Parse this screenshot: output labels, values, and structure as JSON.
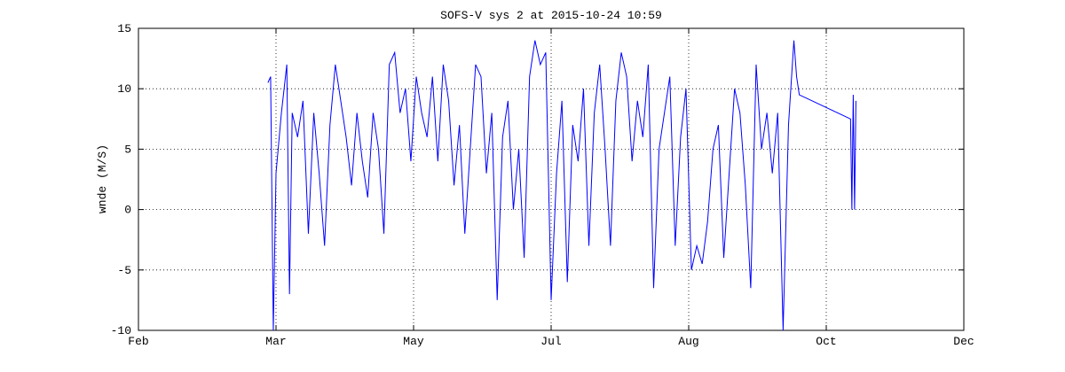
{
  "chart_data": {
    "type": "line",
    "title": "SOFS-V sys 2 at 2015-10-24 10:59",
    "ylabel": "wnde (M/S)",
    "xlim": [
      0,
      306
    ],
    "xticks": [
      {
        "value": 0,
        "label": "Feb"
      },
      {
        "value": 51,
        "label": "Mar"
      },
      {
        "value": 102,
        "label": "May"
      },
      {
        "value": 153,
        "label": "Jul"
      },
      {
        "value": 204,
        "label": "Aug"
      },
      {
        "value": 255,
        "label": "Oct"
      },
      {
        "value": 306,
        "label": "Dec"
      }
    ],
    "ylim": [
      -10,
      15
    ],
    "yticks": [
      -10,
      -5,
      0,
      5,
      10,
      15
    ],
    "grid": true,
    "series": [
      {
        "color": "#0000ff",
        "x": [
          48,
          49,
          50,
          51,
          53,
          55,
          56,
          57,
          59,
          61,
          63,
          65,
          67,
          69,
          71,
          73,
          75,
          77,
          79,
          81,
          83,
          85,
          87,
          89,
          91,
          93,
          95,
          97,
          99,
          101,
          103,
          105,
          107,
          109,
          111,
          113,
          115,
          117,
          119,
          121,
          123,
          125,
          127,
          129,
          131,
          133,
          135,
          137,
          139,
          141,
          143,
          145,
          147,
          149,
          151,
          153,
          155,
          157,
          159,
          161,
          163,
          165,
          167,
          169,
          171,
          173,
          175,
          177,
          179,
          181,
          183,
          185,
          187,
          189,
          191,
          193,
          195,
          197,
          199,
          201,
          203,
          205,
          207,
          209,
          211,
          213,
          215,
          217,
          219,
          221,
          223,
          225,
          227,
          229,
          231,
          233,
          235,
          237,
          239,
          241,
          243,
          244,
          245,
          264,
          264.5,
          265,
          265.5,
          266
        ],
        "values": [
          10.5,
          11,
          -10,
          3,
          8,
          12,
          -7,
          8,
          6,
          9,
          -2,
          8,
          3,
          -3,
          7,
          12,
          9,
          6,
          2,
          8,
          4,
          1,
          8,
          5,
          -2,
          12,
          13,
          8,
          10,
          4,
          11,
          8,
          6,
          11,
          4,
          12,
          9,
          2,
          7,
          -2,
          5,
          12,
          11,
          3,
          8,
          -7.5,
          6,
          9,
          0,
          5,
          -4,
          11,
          14,
          12,
          13,
          -7.5,
          3,
          9,
          -6,
          7,
          4,
          10,
          -3,
          8,
          12,
          5,
          -3,
          9,
          13,
          11,
          4,
          9,
          6,
          12,
          -6.5,
          5,
          8,
          11,
          -3,
          6,
          10,
          -5,
          -3,
          -4.5,
          -1,
          5,
          7,
          -4,
          3,
          10,
          8,
          2,
          -6.5,
          12,
          5,
          8,
          3,
          8,
          -10,
          7,
          14,
          11,
          9.5,
          7.5,
          0,
          9.5,
          0,
          9
        ]
      }
    ]
  }
}
